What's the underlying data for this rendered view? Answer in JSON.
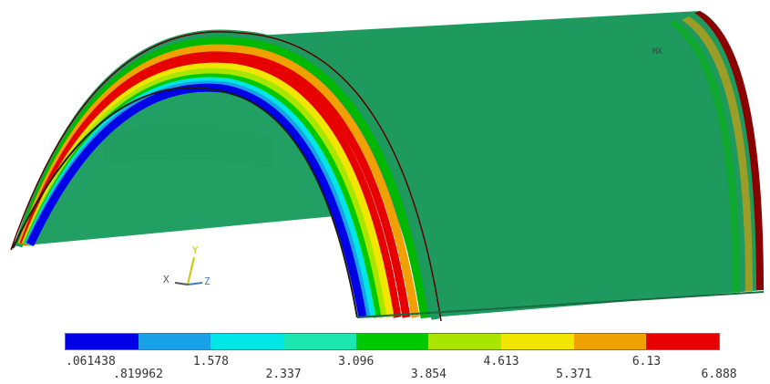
{
  "plot": {
    "background": "#ffffff",
    "surface_color": "#1f9a5f",
    "max_marker": "MX"
  },
  "triad": {
    "x_label": "X",
    "y_label": "Y",
    "z_label": "Z",
    "x_color": "#555555",
    "y_color": "#c8c800",
    "z_color": "#3a7fc4"
  },
  "legend": {
    "colors": [
      "#0000e6",
      "#1aa0e6",
      "#00e6e6",
      "#1ee6b0",
      "#00c800",
      "#a8e600",
      "#f0e600",
      "#f0a000",
      "#e60000"
    ],
    "tick_labels": [
      ".061438",
      ".819962",
      "1.578",
      "2.337",
      "3.096",
      "3.854",
      "4.613",
      "5.371",
      "6.13",
      "6.888"
    ]
  }
}
